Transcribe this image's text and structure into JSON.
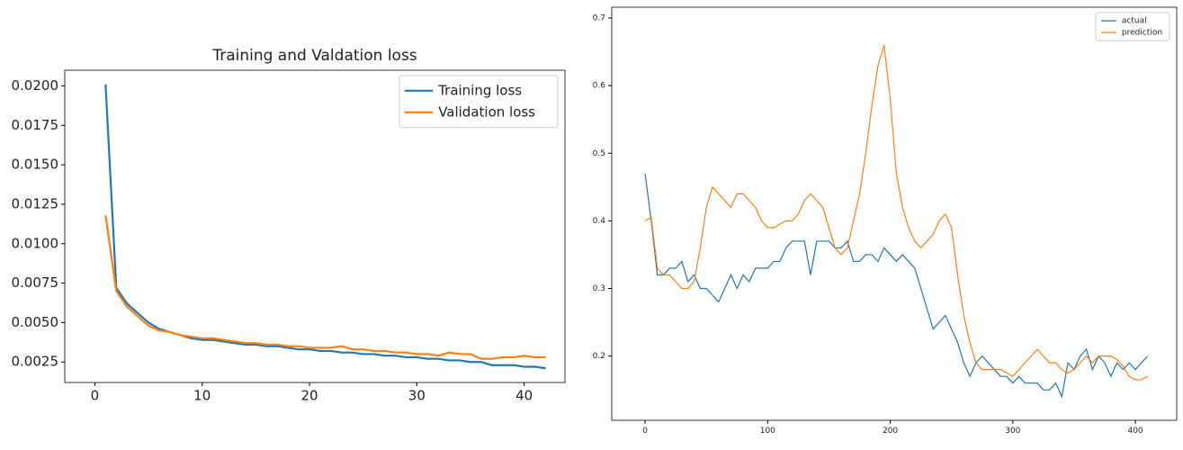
{
  "chart_data": [
    {
      "type": "line",
      "title": "Training and Valdation loss",
      "x": [
        1,
        2,
        3,
        4,
        5,
        6,
        7,
        8,
        9,
        10,
        11,
        12,
        13,
        14,
        15,
        16,
        17,
        18,
        19,
        20,
        21,
        22,
        23,
        24,
        25,
        26,
        27,
        28,
        29,
        30,
        31,
        32,
        33,
        34,
        35,
        36,
        37,
        38,
        39,
        40,
        41,
        42
      ],
      "series": [
        {
          "name": "Training loss",
          "color": "#1f77b4",
          "values": [
            0.0201,
            0.0072,
            0.0062,
            0.0056,
            0.005,
            0.0046,
            0.0044,
            0.0042,
            0.004,
            0.0039,
            0.0039,
            0.0038,
            0.0037,
            0.0036,
            0.0036,
            0.0035,
            0.0035,
            0.0034,
            0.0033,
            0.0033,
            0.0032,
            0.0032,
            0.0031,
            0.0031,
            0.003,
            0.003,
            0.0029,
            0.0029,
            0.0028,
            0.0028,
            0.0027,
            0.0027,
            0.0026,
            0.0026,
            0.0025,
            0.0025,
            0.0023,
            0.0023,
            0.0023,
            0.0022,
            0.0022,
            0.0021
          ]
        },
        {
          "name": "Validation loss",
          "color": "#ff7f0e",
          "values": [
            0.0118,
            0.007,
            0.006,
            0.0054,
            0.0048,
            0.0045,
            0.0044,
            0.0042,
            0.0041,
            0.004,
            0.004,
            0.0039,
            0.0038,
            0.0037,
            0.0037,
            0.0036,
            0.0036,
            0.0035,
            0.0035,
            0.0034,
            0.0034,
            0.0034,
            0.0035,
            0.0033,
            0.0033,
            0.0032,
            0.0032,
            0.0031,
            0.0031,
            0.003,
            0.003,
            0.0029,
            0.0031,
            0.003,
            0.003,
            0.0027,
            0.0027,
            0.0028,
            0.0028,
            0.0029,
            0.0028,
            0.0028
          ]
        }
      ],
      "xlim": [
        -2.8,
        43.8
      ],
      "xticks": [
        0,
        10,
        20,
        30,
        40
      ],
      "ylim": [
        0.0012,
        0.021
      ],
      "yticks": [
        0.0025,
        {
          "value": 0.005,
          "label": "0.0050"
        },
        0.0075,
        {
          "value": 0.01,
          "label": "0.0100"
        },
        0.0125,
        {
          "value": 0.015,
          "label": "0.0150"
        },
        0.0175,
        {
          "value": 0.02,
          "label": "0.0200"
        }
      ],
      "legend": "upper right",
      "grid": false
    },
    {
      "type": "line",
      "x": [
        0,
        5,
        10,
        15,
        20,
        25,
        30,
        35,
        40,
        45,
        50,
        55,
        60,
        65,
        70,
        75,
        80,
        85,
        90,
        95,
        100,
        105,
        110,
        115,
        120,
        125,
        130,
        135,
        140,
        145,
        150,
        155,
        160,
        165,
        170,
        175,
        180,
        185,
        190,
        195,
        200,
        205,
        210,
        215,
        220,
        225,
        230,
        235,
        240,
        245,
        250,
        255,
        260,
        265,
        270,
        275,
        280,
        285,
        290,
        295,
        300,
        305,
        310,
        315,
        320,
        325,
        330,
        335,
        340,
        345,
        350,
        355,
        360,
        365,
        370,
        375,
        380,
        385,
        390,
        395,
        400,
        405,
        410
      ],
      "series": [
        {
          "name": "actual",
          "color": "#1f77b4",
          "values": [
            0.47,
            0.4,
            0.32,
            0.32,
            0.33,
            0.33,
            0.34,
            0.31,
            0.32,
            0.3,
            0.3,
            0.29,
            0.28,
            0.3,
            0.32,
            0.3,
            0.32,
            0.31,
            0.33,
            0.33,
            0.33,
            0.34,
            0.34,
            0.36,
            0.37,
            0.37,
            0.37,
            0.32,
            0.37,
            0.37,
            0.37,
            0.36,
            0.36,
            0.37,
            0.34,
            0.34,
            0.35,
            0.35,
            0.34,
            0.36,
            0.35,
            0.34,
            0.35,
            0.34,
            0.33,
            0.3,
            0.27,
            0.24,
            0.25,
            0.26,
            0.24,
            0.22,
            0.19,
            0.17,
            0.19,
            0.2,
            0.19,
            0.18,
            0.17,
            0.17,
            0.16,
            0.17,
            0.16,
            0.16,
            0.16,
            0.15,
            0.15,
            0.16,
            0.14,
            0.19,
            0.18,
            0.2,
            0.21,
            0.18,
            0.2,
            0.19,
            0.17,
            0.19,
            0.18,
            0.19,
            0.18,
            0.19,
            0.2
          ]
        },
        {
          "name": "prediction",
          "color": "#ff7f0e",
          "values": [
            0.4,
            0.405,
            0.33,
            0.32,
            0.32,
            0.31,
            0.3,
            0.3,
            0.31,
            0.36,
            0.42,
            0.45,
            0.44,
            0.43,
            0.42,
            0.44,
            0.44,
            0.43,
            0.42,
            0.4,
            0.39,
            0.39,
            0.395,
            0.4,
            0.4,
            0.41,
            0.43,
            0.44,
            0.43,
            0.42,
            0.39,
            0.36,
            0.35,
            0.36,
            0.4,
            0.44,
            0.5,
            0.57,
            0.63,
            0.66,
            0.58,
            0.47,
            0.42,
            0.39,
            0.37,
            0.36,
            0.37,
            0.38,
            0.4,
            0.41,
            0.39,
            0.32,
            0.26,
            0.22,
            0.19,
            0.18,
            0.18,
            0.18,
            0.18,
            0.175,
            0.17,
            0.18,
            0.19,
            0.2,
            0.21,
            0.2,
            0.19,
            0.19,
            0.18,
            0.175,
            0.18,
            0.19,
            0.2,
            0.19,
            0.2,
            0.2,
            0.2,
            0.195,
            0.185,
            0.17,
            0.165,
            0.165,
            0.17
          ]
        }
      ],
      "xlim": [
        -27.2,
        433.7
      ],
      "xticks": [
        0,
        100,
        200,
        300,
        400
      ],
      "ylim": [
        0.105,
        0.716
      ],
      "yticks": [
        0.2,
        0.3,
        0.4,
        0.5,
        0.6,
        0.7
      ],
      "legend": "upper right",
      "grid": false
    }
  ]
}
